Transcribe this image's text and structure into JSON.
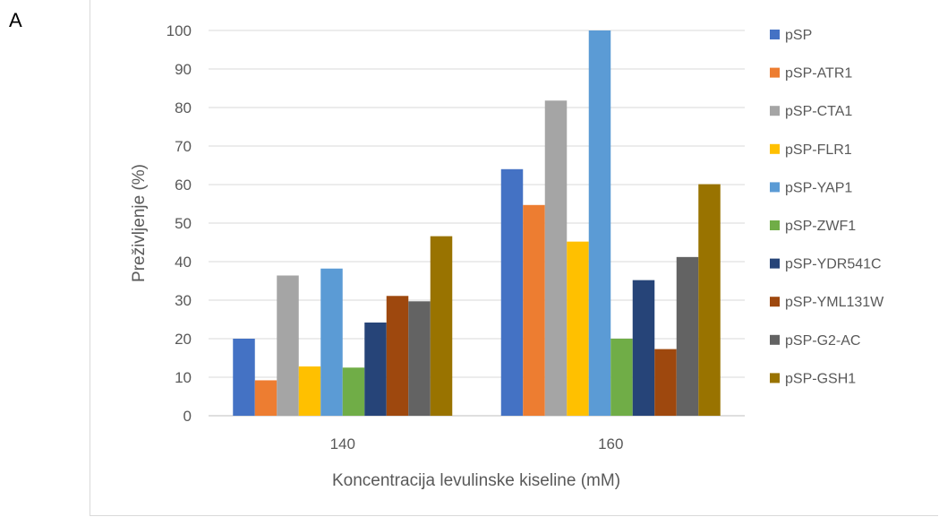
{
  "panel_label": "A",
  "chart_data": {
    "type": "bar",
    "xlabel": "Koncentracija levulinske kiseline (mM)",
    "ylabel": "Preživljenje (%)",
    "ylim": [
      0,
      100
    ],
    "yticks": [
      0,
      10,
      20,
      30,
      40,
      50,
      60,
      70,
      80,
      90,
      100
    ],
    "grid": true,
    "legend_position": "right",
    "categories": [
      "140",
      "160"
    ],
    "series": [
      {
        "name": "pSP",
        "color": "#4472C4",
        "values": [
          20,
          64
        ]
      },
      {
        "name": "pSP-ATR1",
        "color": "#ED7D31",
        "values": [
          9.2,
          54.7
        ]
      },
      {
        "name": "pSP-CTA1",
        "color": "#A5A5A5",
        "values": [
          36.4,
          81.8
        ]
      },
      {
        "name": "pSP-FLR1",
        "color": "#FFC000",
        "values": [
          12.8,
          45.2
        ]
      },
      {
        "name": "pSP-YAP1",
        "color": "#5B9BD5",
        "values": [
          38.2,
          100
        ]
      },
      {
        "name": "pSP-ZWF1",
        "color": "#70AD47",
        "values": [
          12.5,
          20
        ]
      },
      {
        "name": "pSP-YDR541C",
        "color": "#264478",
        "values": [
          24.2,
          35.2
        ]
      },
      {
        "name": "pSP-YML131W",
        "color": "#9E480E",
        "values": [
          31.1,
          17.3
        ]
      },
      {
        "name": "pSP-G2-AC",
        "color": "#636363",
        "values": [
          29.7,
          41.2
        ]
      },
      {
        "name": "pSP-GSH1",
        "color": "#997300",
        "values": [
          46.6,
          60.1
        ]
      }
    ]
  }
}
